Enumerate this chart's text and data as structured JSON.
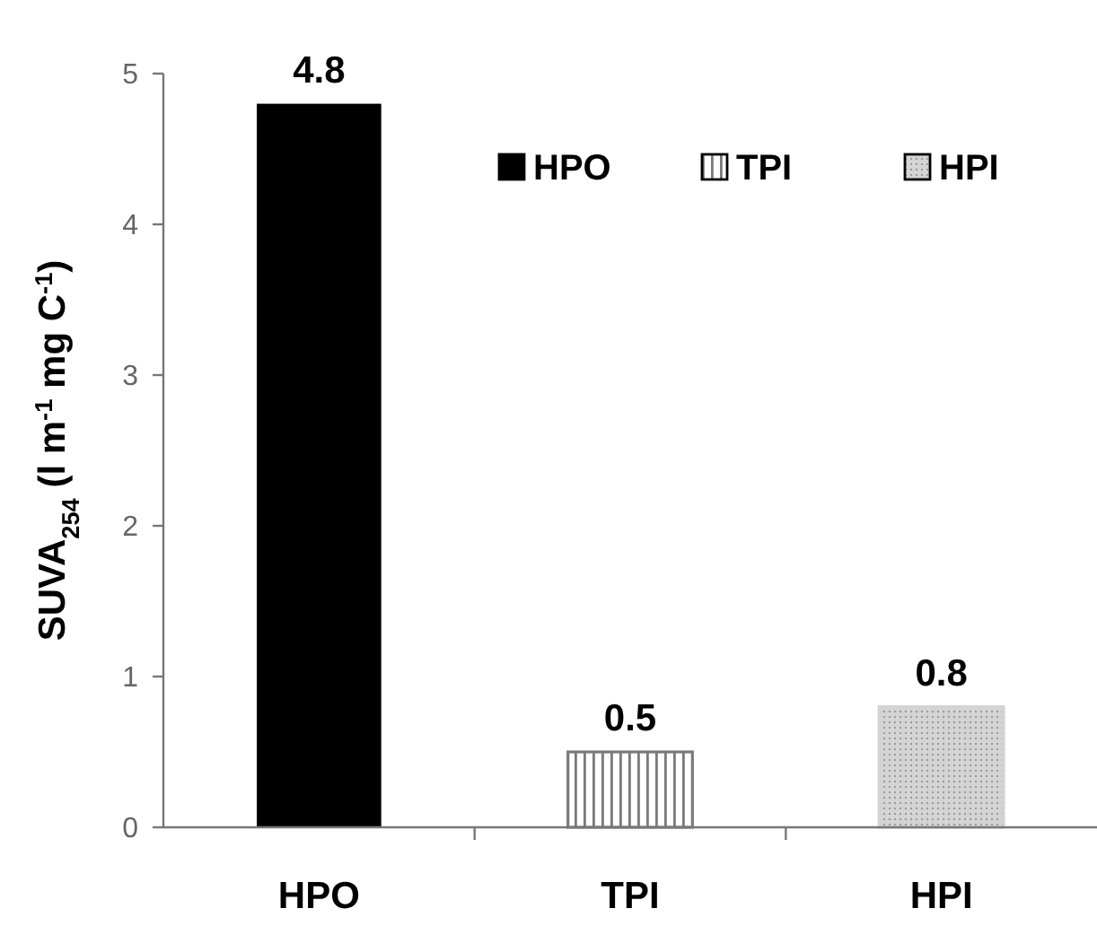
{
  "chart_data": {
    "type": "bar",
    "ylabel": "SUVA$_{254}$  (l m$^{-1}$ mg C$^{-1}$)",
    "categories": [
      "HPO",
      "TPI",
      "HPI"
    ],
    "stacked": true,
    "series": [
      {
        "name": "HPO",
        "color": "#000000",
        "values": [
          4.8,
          null,
          null
        ]
      },
      {
        "name": "TPI",
        "color": "#7a7a7a",
        "values": [
          null,
          0.5,
          null
        ]
      },
      {
        "name": "HPI",
        "color": "#d4d4d4",
        "values": [
          null,
          null,
          0.8
        ]
      }
    ],
    "ylim": [
      0,
      5
    ],
    "yticks": [
      0,
      1,
      2,
      3,
      4,
      5
    ],
    "data_labels": true,
    "legend": "top right",
    "grid": false
  }
}
